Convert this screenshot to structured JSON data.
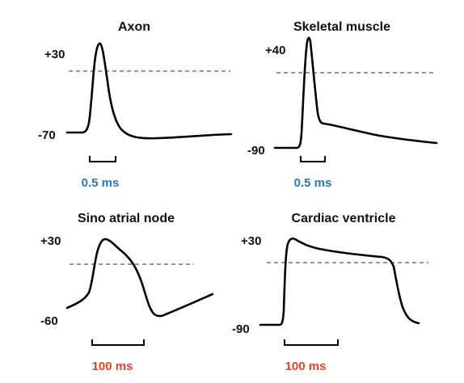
{
  "panels": [
    {
      "title": "Axon",
      "y_top_label": "+30",
      "y_bottom_label": "-70",
      "time_scale": "0.5 ms"
    },
    {
      "title": "Skeletal muscle",
      "y_top_label": "+40",
      "y_bottom_label": "-90",
      "time_scale": "0.5 ms"
    },
    {
      "title": "Sino atrial node",
      "y_top_label": "+30",
      "y_bottom_label": "-60",
      "time_scale": "100 ms"
    },
    {
      "title": "Cardiac ventricle",
      "y_top_label": "+30",
      "y_bottom_label": "-90",
      "time_scale": "100 ms"
    }
  ],
  "colors": {
    "fast_scale": "#2a78c0",
    "slow_scale": "#e8412a",
    "trace": "#000000",
    "threshold": "#555555"
  }
}
